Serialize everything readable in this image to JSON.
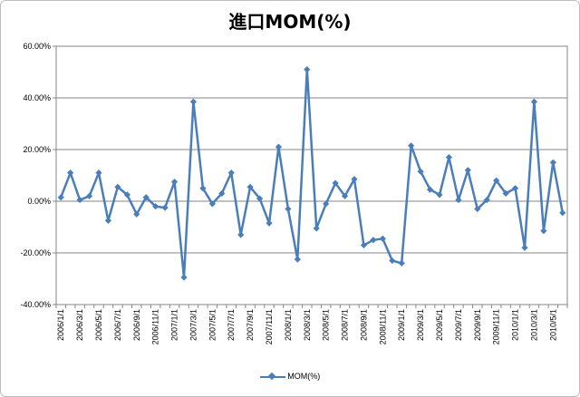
{
  "chart_data": {
    "type": "line",
    "title": "進口MOM(%)",
    "xlabel": "",
    "ylabel": "",
    "ylim": [
      -40,
      60
    ],
    "y_ticks": [
      "60.00%",
      "40.00%",
      "20.00%",
      "0.00%",
      "-20.00%",
      "-40.00%"
    ],
    "x_tick_labels": [
      "2006/1/1",
      "2006/3/1",
      "2006/5/1",
      "2006/7/1",
      "2006/9/1",
      "2006/11/1",
      "2007/1/1",
      "2007/3/1",
      "2007/5/1",
      "2007/7/1",
      "2007/9/1",
      "2007/11/1",
      "2008/1/1",
      "2008/3/1",
      "2008/5/1",
      "2008/7/1",
      "2008/9/1",
      "2008/11/1",
      "2009/1/1",
      "2009/3/1",
      "2009/5/1",
      "2009/7/1",
      "2009/9/1",
      "2009/11/1",
      "2010/1/1",
      "2010/3/1",
      "2010/5/1"
    ],
    "grid": true,
    "legend": "bottom",
    "color": "#4a7ebb",
    "series": [
      {
        "name": "MOM(%)",
        "values": [
          1.5,
          11,
          0.5,
          2,
          11,
          -7.5,
          5.5,
          2.5,
          -5,
          1.5,
          -2,
          -2.5,
          7.5,
          -29.5,
          38.5,
          5,
          -1,
          3,
          11,
          -13,
          5.5,
          1,
          -8.5,
          21,
          -3,
          -22.5,
          51,
          -10.5,
          -1,
          7,
          2,
          8.5,
          -17,
          -15,
          -14.5,
          -23,
          -24,
          21.5,
          11.5,
          4.5,
          2.5,
          17,
          0.5,
          12,
          -3,
          0.5,
          8,
          3,
          5,
          -18,
          38.5,
          -11.5,
          15,
          -4.5
        ]
      }
    ]
  }
}
